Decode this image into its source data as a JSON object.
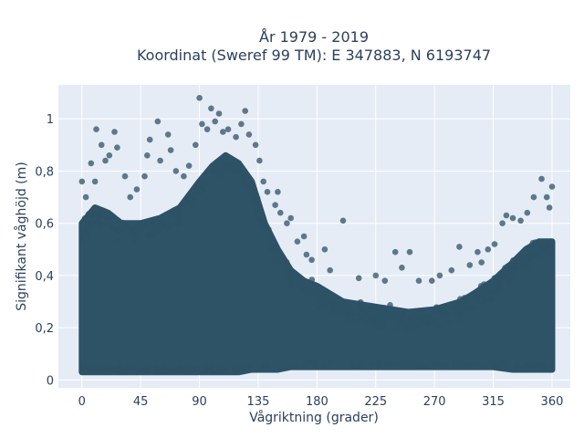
{
  "chart_data": {
    "type": "scatter",
    "title": "År 1979 - 2019",
    "subtitle": "Koordinat (Sweref 99 TM): E 347883, N 6193747",
    "xlabel": "Vågriktning (grader)",
    "ylabel": "Signifikant våghöjd (m)",
    "xlim": [
      -18,
      374
    ],
    "ylim": [
      -0.03,
      1.13
    ],
    "x_ticks": [
      0,
      45,
      90,
      135,
      180,
      225,
      270,
      315,
      360
    ],
    "x_tick_labels": [
      "0",
      "45",
      "90",
      "135",
      "180",
      "225",
      "270",
      "315",
      "360"
    ],
    "y_ticks": [
      0,
      0.2,
      0.4,
      0.6,
      0.8,
      1
    ],
    "y_tick_labels": [
      "0",
      "0,2",
      "0,4",
      "0,6",
      "0,8",
      "1"
    ],
    "grid": true,
    "legend": "none",
    "colors": {
      "marker": "#2e5266",
      "plot_bg": "#e5ecf6",
      "grid": "#ffffff",
      "text": "#2a3f5f"
    },
    "envelope": {
      "x": [
        0,
        10,
        20,
        30,
        45,
        60,
        75,
        90,
        100,
        110,
        120,
        130,
        140,
        150,
        160,
        170,
        180,
        200,
        225,
        250,
        270,
        290,
        300,
        315,
        330,
        340,
        350,
        360
      ],
      "y_max": [
        0.6,
        0.66,
        0.64,
        0.6,
        0.6,
        0.62,
        0.66,
        0.76,
        0.82,
        0.86,
        0.83,
        0.76,
        0.6,
        0.5,
        0.42,
        0.38,
        0.36,
        0.3,
        0.28,
        0.26,
        0.27,
        0.3,
        0.33,
        0.38,
        0.45,
        0.5,
        0.53,
        0.53
      ],
      "y_min": [
        0.03,
        0.03,
        0.03,
        0.03,
        0.03,
        0.03,
        0.03,
        0.03,
        0.03,
        0.03,
        0.03,
        0.04,
        0.04,
        0.04,
        0.05,
        0.05,
        0.05,
        0.05,
        0.05,
        0.05,
        0.05,
        0.05,
        0.05,
        0.05,
        0.04,
        0.04,
        0.04,
        0.04
      ]
    },
    "outliers": [
      {
        "x": 0,
        "y": 0.76
      },
      {
        "x": 3,
        "y": 0.7
      },
      {
        "x": 7,
        "y": 0.83
      },
      {
        "x": 10,
        "y": 0.76
      },
      {
        "x": 11,
        "y": 0.96
      },
      {
        "x": 15,
        "y": 0.9
      },
      {
        "x": 18,
        "y": 0.84
      },
      {
        "x": 21,
        "y": 0.86
      },
      {
        "x": 25,
        "y": 0.95
      },
      {
        "x": 27,
        "y": 0.89
      },
      {
        "x": 33,
        "y": 0.78
      },
      {
        "x": 37,
        "y": 0.7
      },
      {
        "x": 42,
        "y": 0.73
      },
      {
        "x": 48,
        "y": 0.78
      },
      {
        "x": 50,
        "y": 0.86
      },
      {
        "x": 52,
        "y": 0.92
      },
      {
        "x": 58,
        "y": 0.99
      },
      {
        "x": 60,
        "y": 0.84
      },
      {
        "x": 66,
        "y": 0.94
      },
      {
        "x": 68,
        "y": 0.88
      },
      {
        "x": 72,
        "y": 0.8
      },
      {
        "x": 78,
        "y": 0.78
      },
      {
        "x": 82,
        "y": 0.82
      },
      {
        "x": 87,
        "y": 0.9
      },
      {
        "x": 90,
        "y": 1.08
      },
      {
        "x": 92,
        "y": 0.98
      },
      {
        "x": 96,
        "y": 0.96
      },
      {
        "x": 99,
        "y": 1.04
      },
      {
        "x": 102,
        "y": 0.99
      },
      {
        "x": 105,
        "y": 1.02
      },
      {
        "x": 108,
        "y": 0.95
      },
      {
        "x": 112,
        "y": 0.96
      },
      {
        "x": 118,
        "y": 0.93
      },
      {
        "x": 122,
        "y": 0.98
      },
      {
        "x": 125,
        "y": 1.03
      },
      {
        "x": 128,
        "y": 0.94
      },
      {
        "x": 133,
        "y": 0.9
      },
      {
        "x": 136,
        "y": 0.84
      },
      {
        "x": 139,
        "y": 0.76
      },
      {
        "x": 142,
        "y": 0.72
      },
      {
        "x": 148,
        "y": 0.67
      },
      {
        "x": 150,
        "y": 0.72
      },
      {
        "x": 152,
        "y": 0.64
      },
      {
        "x": 157,
        "y": 0.6
      },
      {
        "x": 160,
        "y": 0.62
      },
      {
        "x": 165,
        "y": 0.53
      },
      {
        "x": 170,
        "y": 0.55
      },
      {
        "x": 172,
        "y": 0.48
      },
      {
        "x": 176,
        "y": 0.46
      },
      {
        "x": 186,
        "y": 0.5
      },
      {
        "x": 190,
        "y": 0.42
      },
      {
        "x": 200,
        "y": 0.61
      },
      {
        "x": 212,
        "y": 0.39
      },
      {
        "x": 225,
        "y": 0.4
      },
      {
        "x": 232,
        "y": 0.38
      },
      {
        "x": 240,
        "y": 0.49
      },
      {
        "x": 245,
        "y": 0.43
      },
      {
        "x": 251,
        "y": 0.49
      },
      {
        "x": 258,
        "y": 0.38
      },
      {
        "x": 268,
        "y": 0.38
      },
      {
        "x": 274,
        "y": 0.4
      },
      {
        "x": 283,
        "y": 0.42
      },
      {
        "x": 289,
        "y": 0.51
      },
      {
        "x": 297,
        "y": 0.44
      },
      {
        "x": 303,
        "y": 0.49
      },
      {
        "x": 306,
        "y": 0.45
      },
      {
        "x": 311,
        "y": 0.5
      },
      {
        "x": 316,
        "y": 0.52
      },
      {
        "x": 322,
        "y": 0.6
      },
      {
        "x": 325,
        "y": 0.63
      },
      {
        "x": 330,
        "y": 0.62
      },
      {
        "x": 336,
        "y": 0.61
      },
      {
        "x": 341,
        "y": 0.64
      },
      {
        "x": 346,
        "y": 0.7
      },
      {
        "x": 352,
        "y": 0.77
      },
      {
        "x": 356,
        "y": 0.7
      },
      {
        "x": 358,
        "y": 0.66
      },
      {
        "x": 360,
        "y": 0.74
      }
    ]
  }
}
